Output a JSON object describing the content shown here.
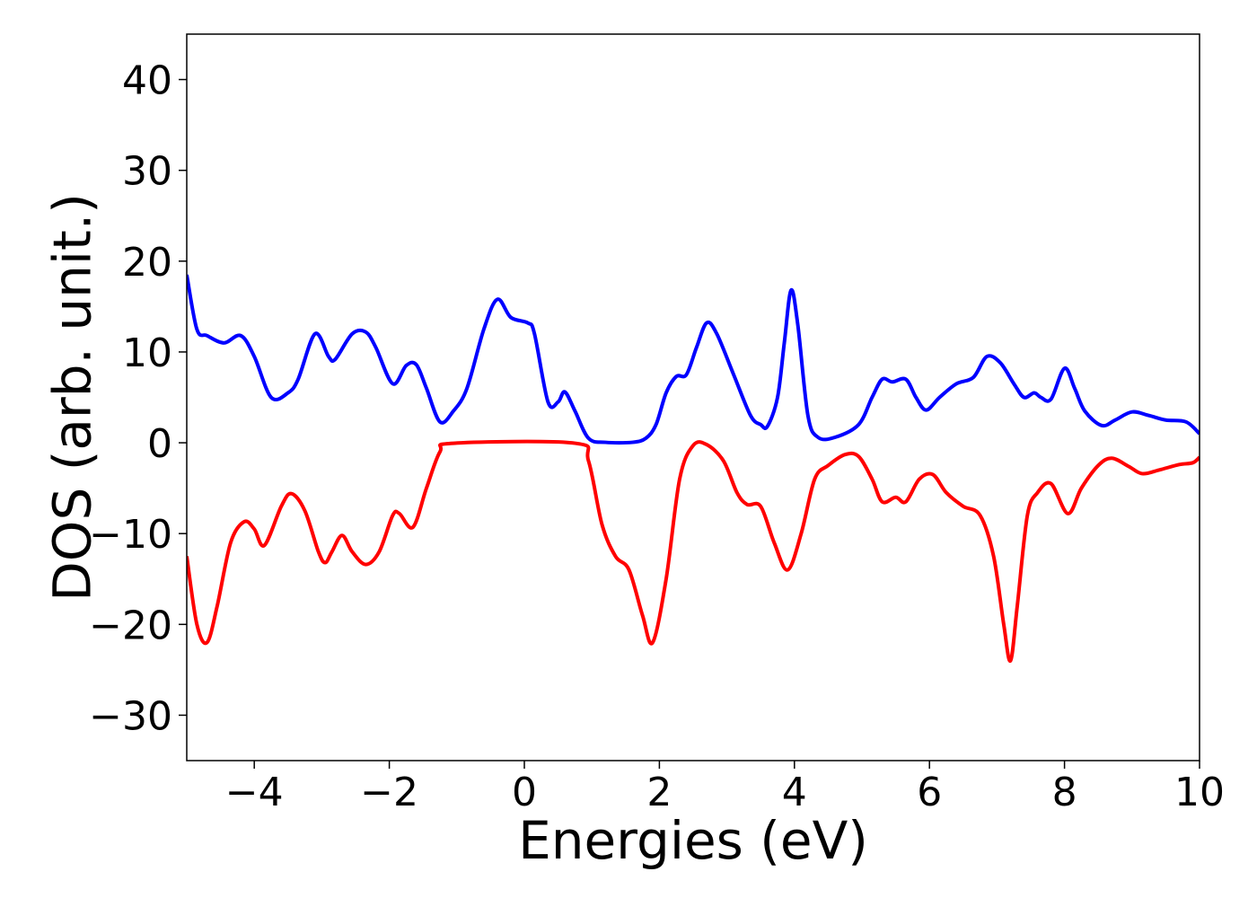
{
  "chart_data": {
    "type": "line",
    "xlabel": "Energies (eV)",
    "ylabel": "DOS (arb. unit.)",
    "xlim": [
      -5,
      10
    ],
    "ylim": [
      -35,
      45
    ],
    "x_ticks": [
      -4,
      -2,
      0,
      2,
      4,
      6,
      8,
      10
    ],
    "x_tick_labels": [
      "−4",
      "−2",
      "0",
      "2",
      "4",
      "6",
      "8",
      "10"
    ],
    "y_ticks": [
      -30,
      -20,
      -10,
      0,
      10,
      20,
      30,
      40
    ],
    "y_tick_labels": [
      "−30",
      "−20",
      "−10",
      "0",
      "10",
      "20",
      "30",
      "40"
    ],
    "grid": false,
    "series": [
      {
        "color": "#0000ff",
        "points": [
          [
            -5.0,
            18.5
          ],
          [
            -4.85,
            12.5
          ],
          [
            -4.7,
            11.8
          ],
          [
            -4.45,
            11.0
          ],
          [
            -4.2,
            11.8
          ],
          [
            -4.0,
            9.5
          ],
          [
            -3.75,
            5.0
          ],
          [
            -3.5,
            5.5
          ],
          [
            -3.35,
            7.0
          ],
          [
            -3.1,
            12.0
          ],
          [
            -2.9,
            9.5
          ],
          [
            -2.8,
            9.2
          ],
          [
            -2.55,
            12.0
          ],
          [
            -2.35,
            12.2
          ],
          [
            -2.2,
            10.5
          ],
          [
            -1.95,
            6.5
          ],
          [
            -1.75,
            8.5
          ],
          [
            -1.6,
            8.6
          ],
          [
            -1.45,
            6.0
          ],
          [
            -1.25,
            2.3
          ],
          [
            -1.05,
            3.5
          ],
          [
            -0.85,
            6.0
          ],
          [
            -0.6,
            12.5
          ],
          [
            -0.4,
            15.8
          ],
          [
            -0.2,
            13.8
          ],
          [
            0.05,
            13.2
          ],
          [
            0.15,
            12.0
          ],
          [
            0.35,
            4.5
          ],
          [
            0.5,
            4.5
          ],
          [
            0.6,
            5.6
          ],
          [
            0.75,
            3.5
          ],
          [
            0.95,
            0.5
          ],
          [
            1.2,
            0.05
          ],
          [
            1.6,
            0.05
          ],
          [
            1.8,
            0.5
          ],
          [
            1.95,
            2.0
          ],
          [
            2.1,
            5.5
          ],
          [
            2.25,
            7.3
          ],
          [
            2.4,
            7.5
          ],
          [
            2.55,
            10.5
          ],
          [
            2.7,
            13.2
          ],
          [
            2.85,
            12.0
          ],
          [
            3.1,
            7.5
          ],
          [
            3.35,
            3.0
          ],
          [
            3.5,
            2.0
          ],
          [
            3.6,
            1.8
          ],
          [
            3.75,
            5.0
          ],
          [
            3.85,
            11.0
          ],
          [
            3.95,
            16.8
          ],
          [
            4.05,
            13.0
          ],
          [
            4.2,
            3.0
          ],
          [
            4.35,
            0.6
          ],
          [
            4.6,
            0.6
          ],
          [
            4.95,
            2.0
          ],
          [
            5.15,
            5.0
          ],
          [
            5.3,
            7.0
          ],
          [
            5.45,
            6.7
          ],
          [
            5.65,
            7.0
          ],
          [
            5.8,
            5.0
          ],
          [
            5.95,
            3.6
          ],
          [
            6.15,
            5.0
          ],
          [
            6.4,
            6.5
          ],
          [
            6.65,
            7.2
          ],
          [
            6.85,
            9.5
          ],
          [
            7.05,
            8.8
          ],
          [
            7.25,
            6.5
          ],
          [
            7.4,
            5.0
          ],
          [
            7.55,
            5.5
          ],
          [
            7.65,
            5.0
          ],
          [
            7.8,
            4.8
          ],
          [
            8.0,
            8.2
          ],
          [
            8.15,
            6.0
          ],
          [
            8.3,
            3.5
          ],
          [
            8.55,
            1.9
          ],
          [
            8.75,
            2.5
          ],
          [
            9.0,
            3.4
          ],
          [
            9.25,
            3.0
          ],
          [
            9.5,
            2.5
          ],
          [
            9.8,
            2.3
          ],
          [
            10.0,
            1.0
          ]
        ]
      },
      {
        "color": "#ff0000",
        "points": [
          [
            -5.0,
            -12.5
          ],
          [
            -4.85,
            -20.0
          ],
          [
            -4.7,
            -22.0
          ],
          [
            -4.55,
            -18.0
          ],
          [
            -4.35,
            -11.0
          ],
          [
            -4.15,
            -8.7
          ],
          [
            -4.0,
            -9.5
          ],
          [
            -3.85,
            -11.3
          ],
          [
            -3.6,
            -7.0
          ],
          [
            -3.45,
            -5.6
          ],
          [
            -3.25,
            -7.5
          ],
          [
            -3.05,
            -12.0
          ],
          [
            -2.95,
            -13.2
          ],
          [
            -2.85,
            -12.0
          ],
          [
            -2.7,
            -10.2
          ],
          [
            -2.55,
            -12.0
          ],
          [
            -2.35,
            -13.4
          ],
          [
            -2.15,
            -12.0
          ],
          [
            -1.95,
            -8.0
          ],
          [
            -1.85,
            -7.8
          ],
          [
            -1.65,
            -9.3
          ],
          [
            -1.45,
            -5.0
          ],
          [
            -1.25,
            -1.0
          ],
          [
            -1.05,
            -0.05
          ],
          [
            0.75,
            -0.05
          ],
          [
            0.95,
            -2.0
          ],
          [
            1.15,
            -9.0
          ],
          [
            1.35,
            -12.5
          ],
          [
            1.55,
            -14.0
          ],
          [
            1.75,
            -19.0
          ],
          [
            1.9,
            -22.0
          ],
          [
            2.1,
            -15.0
          ],
          [
            2.3,
            -4.0
          ],
          [
            2.5,
            -0.3
          ],
          [
            2.7,
            -0.2
          ],
          [
            2.95,
            -2.0
          ],
          [
            3.15,
            -5.5
          ],
          [
            3.3,
            -6.8
          ],
          [
            3.5,
            -7.0
          ],
          [
            3.7,
            -11.0
          ],
          [
            3.9,
            -14.0
          ],
          [
            4.1,
            -10.0
          ],
          [
            4.3,
            -4.0
          ],
          [
            4.5,
            -2.5
          ],
          [
            4.75,
            -1.3
          ],
          [
            4.95,
            -1.5
          ],
          [
            5.15,
            -4.0
          ],
          [
            5.3,
            -6.5
          ],
          [
            5.5,
            -6.0
          ],
          [
            5.65,
            -6.5
          ],
          [
            5.85,
            -4.0
          ],
          [
            6.05,
            -3.5
          ],
          [
            6.25,
            -5.5
          ],
          [
            6.5,
            -7.0
          ],
          [
            6.75,
            -8.0
          ],
          [
            6.95,
            -12.5
          ],
          [
            7.1,
            -20.0
          ],
          [
            7.2,
            -24.0
          ],
          [
            7.3,
            -18.0
          ],
          [
            7.45,
            -8.0
          ],
          [
            7.6,
            -5.5
          ],
          [
            7.8,
            -4.5
          ],
          [
            8.05,
            -7.8
          ],
          [
            8.25,
            -5.0
          ],
          [
            8.5,
            -2.5
          ],
          [
            8.7,
            -1.7
          ],
          [
            8.95,
            -2.6
          ],
          [
            9.15,
            -3.4
          ],
          [
            9.4,
            -3.0
          ],
          [
            9.7,
            -2.4
          ],
          [
            9.9,
            -2.2
          ],
          [
            10.0,
            -1.6
          ]
        ]
      }
    ]
  }
}
